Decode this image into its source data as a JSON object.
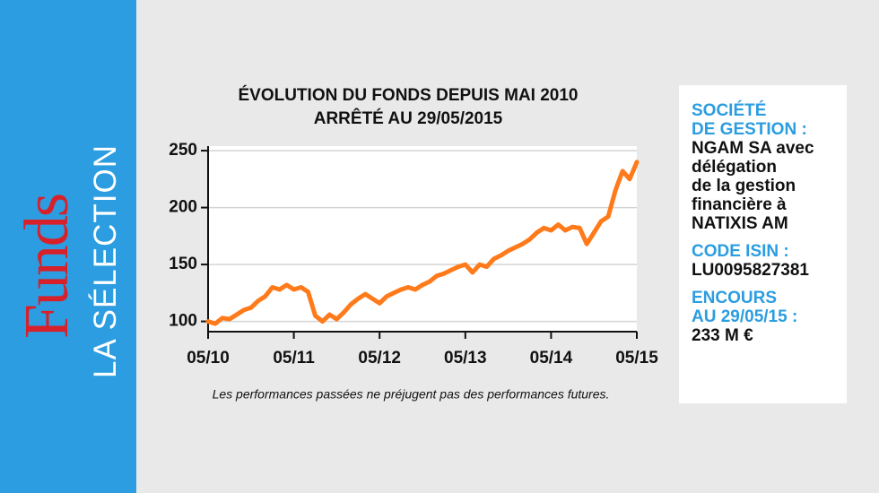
{
  "sidebar": {
    "brand": "Funds",
    "subtitle": "LA SÉLECTION"
  },
  "chart_data": {
    "type": "line",
    "title_lines": [
      "ÉVOLUTION DU FONDS DEPUIS MAI 2010",
      "ARRÊTÉ AU 29/05/2015"
    ],
    "note": "Les performances passées ne préjugent pas des performances futures.",
    "x": [
      "2010-05",
      "2010-06",
      "2010-07",
      "2010-08",
      "2010-09",
      "2010-10",
      "2010-11",
      "2010-12",
      "2011-01",
      "2011-02",
      "2011-03",
      "2011-04",
      "2011-05",
      "2011-06",
      "2011-07",
      "2011-08",
      "2011-09",
      "2011-10",
      "2011-11",
      "2011-12",
      "2012-01",
      "2012-02",
      "2012-03",
      "2012-04",
      "2012-05",
      "2012-06",
      "2012-07",
      "2012-08",
      "2012-09",
      "2012-10",
      "2012-11",
      "2012-12",
      "2013-01",
      "2013-02",
      "2013-03",
      "2013-04",
      "2013-05",
      "2013-06",
      "2013-07",
      "2013-08",
      "2013-09",
      "2013-10",
      "2013-11",
      "2013-12",
      "2014-01",
      "2014-02",
      "2014-03",
      "2014-04",
      "2014-05",
      "2014-06",
      "2014-07",
      "2014-08",
      "2014-09",
      "2014-10",
      "2014-11",
      "2014-12",
      "2015-01",
      "2015-02",
      "2015-03",
      "2015-04",
      "2015-05"
    ],
    "values": [
      100,
      98,
      103,
      102,
      106,
      110,
      112,
      118,
      122,
      130,
      128,
      132,
      128,
      130,
      126,
      105,
      100,
      106,
      102,
      108,
      115,
      120,
      124,
      120,
      116,
      122,
      125,
      128,
      130,
      128,
      132,
      135,
      140,
      142,
      145,
      148,
      150,
      143,
      150,
      148,
      155,
      158,
      162,
      165,
      168,
      172,
      178,
      182,
      180,
      185,
      180,
      183,
      182,
      168,
      178,
      188,
      192,
      215,
      232,
      225,
      240
    ],
    "color": "#ff7a1a",
    "xlim": [
      "2010-05",
      "2015-05"
    ],
    "xticks": [
      {
        "value": "2010-05",
        "label": "05/10"
      },
      {
        "value": "2011-05",
        "label": "05/11"
      },
      {
        "value": "2012-05",
        "label": "05/12"
      },
      {
        "value": "2013-05",
        "label": "05/13"
      },
      {
        "value": "2014-05",
        "label": "05/14"
      },
      {
        "value": "2015-05",
        "label": "05/15"
      }
    ],
    "ylim": [
      91,
      254
    ],
    "yticks": [
      100,
      150,
      200,
      250
    ],
    "grid": true
  },
  "info": {
    "company_label": [
      "SOCIÉTÉ",
      "DE GESTION :"
    ],
    "company_value": [
      "NGAM SA avec",
      "délégation",
      "de la gestion",
      "financière à",
      "NATIXIS AM"
    ],
    "isin_label": [
      "CODE ISIN :"
    ],
    "isin_value": [
      "LU0095827381"
    ],
    "aum_label": [
      "ENCOURS",
      "AU 29/05/15 :"
    ],
    "aum_value": [
      "233 M €"
    ]
  }
}
